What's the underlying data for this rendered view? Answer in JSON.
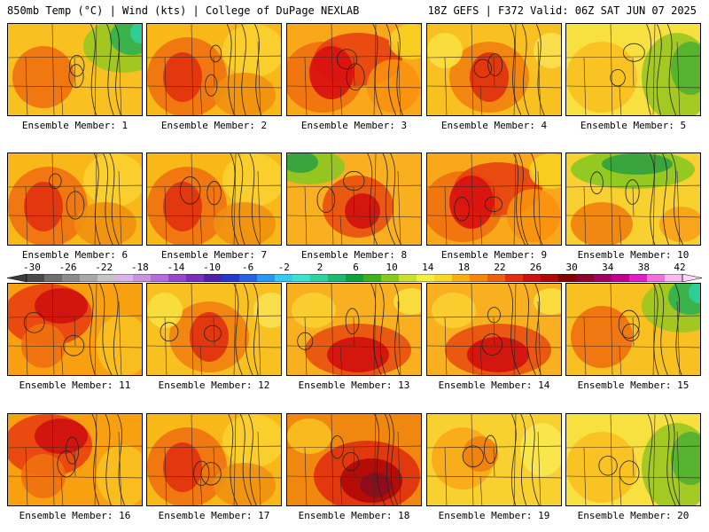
{
  "header": {
    "left": "850mb Temp (°C) | Wind (kts) | College of DuPage NEXLAB",
    "right": "18Z GEFS | F372 Valid: 06Z SAT JUN 07 2025"
  },
  "colorbar": {
    "labels": [
      "-30",
      "-26",
      "-22",
      "-18",
      "-14",
      "-10",
      "-6",
      "-2",
      "2",
      "6",
      "10",
      "14",
      "18",
      "22",
      "26",
      "30",
      "34",
      "38",
      "42"
    ],
    "colors": [
      "#4a4a4a",
      "#6e6e6e",
      "#8c8c8c",
      "#a8a8a8",
      "#c4c4c4",
      "#d8b4e8",
      "#c894e0",
      "#b070d8",
      "#9848c8",
      "#7830b8",
      "#5020a8",
      "#2838c8",
      "#2860e0",
      "#2898f0",
      "#38c8f0",
      "#40e0d0",
      "#30d0a0",
      "#20b870",
      "#10a040",
      "#40b020",
      "#88c820",
      "#c8e030",
      "#f0f040",
      "#f8d820",
      "#f8b010",
      "#f08810",
      "#e86010",
      "#e03010",
      "#d01010",
      "#b00808",
      "#800000",
      "#8c0030",
      "#a00060",
      "#c0008c",
      "#e020c0",
      "#f070e0",
      "#f8b8f0"
    ]
  },
  "panels": [
    {
      "caption": "Ensemble Member: 1",
      "theme": "cool_ne"
    },
    {
      "caption": "Ensemble Member: 2",
      "theme": "hot_w"
    },
    {
      "caption": "Ensemble Member: 3",
      "theme": "hot"
    },
    {
      "caption": "Ensemble Member: 4",
      "theme": "hot_center"
    },
    {
      "caption": "Ensemble Member: 5",
      "theme": "cool_e"
    },
    {
      "caption": "Ensemble Member: 6",
      "theme": "hot_w"
    },
    {
      "caption": "Ensemble Member: 7",
      "theme": "hot_w"
    },
    {
      "caption": "Ensemble Member: 8",
      "theme": "cool_nw"
    },
    {
      "caption": "Ensemble Member: 9",
      "theme": "hot"
    },
    {
      "caption": "Ensemble Member: 10",
      "theme": "cool_n"
    },
    {
      "caption": "Ensemble Member: 11",
      "theme": "hot_nw"
    },
    {
      "caption": "Ensemble Member: 12",
      "theme": "hot_center"
    },
    {
      "caption": "Ensemble Member: 13",
      "theme": "hot_s"
    },
    {
      "caption": "Ensemble Member: 14",
      "theme": "hot_s"
    },
    {
      "caption": "Ensemble Member: 15",
      "theme": "cool_ne"
    },
    {
      "caption": "Ensemble Member: 16",
      "theme": "hot_nw"
    },
    {
      "caption": "Ensemble Member: 17",
      "theme": "hot_w"
    },
    {
      "caption": "Ensemble Member: 18",
      "theme": "very_hot"
    },
    {
      "caption": "Ensemble Member: 19",
      "theme": "mild"
    },
    {
      "caption": "Ensemble Member: 20",
      "theme": "cool_e"
    }
  ]
}
